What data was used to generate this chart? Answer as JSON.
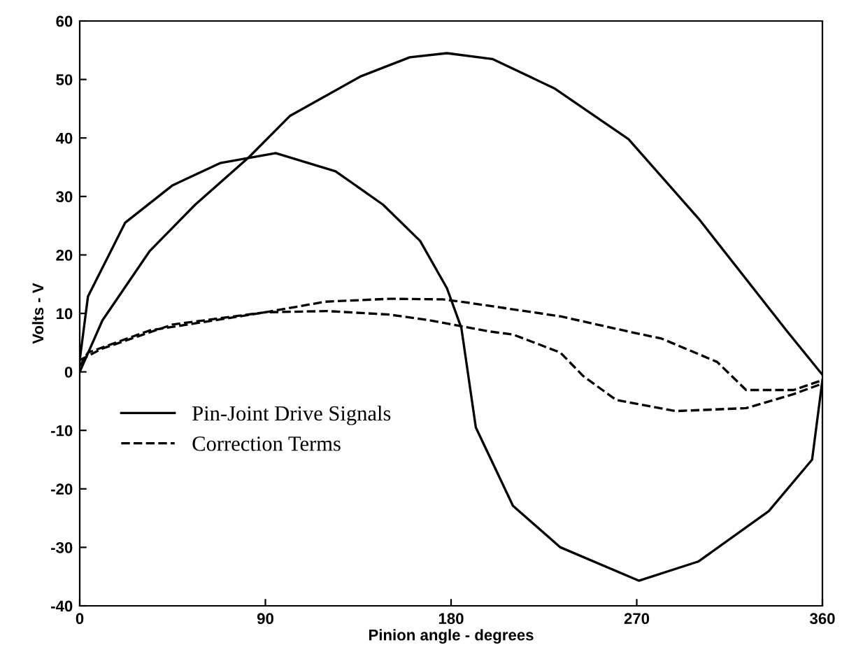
{
  "chart_data": {
    "type": "line",
    "xlabel": "Pinion angle - degrees",
    "ylabel": "Volts - V",
    "xlim": [
      0,
      360
    ],
    "xticks": [
      0,
      90,
      180,
      270,
      360
    ],
    "ylim": [
      -40,
      60
    ],
    "yticks": [
      -40,
      -30,
      -20,
      -10,
      0,
      10,
      20,
      30,
      40,
      50,
      60
    ],
    "grid": false,
    "legend": "left",
    "series": [
      {
        "name": "Pin-Joint Drive Signals",
        "color": "#000000",
        "line_style": "solid",
        "x": [
          0,
          11,
          34,
          56,
          82,
          102,
          136,
          160,
          178,
          200,
          230,
          266,
          300,
          343,
          360
        ],
        "values": [
          0,
          8.8,
          20.7,
          28.6,
          36.7,
          43.8,
          50.5,
          53.8,
          54.5,
          53.5,
          48.5,
          39.8,
          26.2,
          6.9,
          -0.5
        ]
      },
      {
        "color": "#000000",
        "line_style": "solid",
        "x": [
          0,
          4,
          22,
          45,
          68,
          95,
          124,
          147,
          165,
          178,
          185,
          192,
          210,
          233,
          271,
          300,
          334,
          355,
          360
        ],
        "values": [
          2,
          12.9,
          25.5,
          31.9,
          35.7,
          37.4,
          34.3,
          28.6,
          22.4,
          14.3,
          7.5,
          -9.5,
          -22.9,
          -30,
          -35.7,
          -32.4,
          -23.8,
          -15,
          -1.4
        ]
      },
      {
        "name": "Correction Terms",
        "color": "#000000",
        "line_style": "dashed",
        "x": [
          0,
          4,
          34,
          56,
          90,
          119,
          150,
          176,
          187,
          233,
          266,
          282,
          309,
          323,
          346,
          360
        ],
        "values": [
          1,
          3.3,
          7.1,
          8.3,
          10.2,
          12,
          12.5,
          12.4,
          11.9,
          9.5,
          6.9,
          5.7,
          1.7,
          -3.1,
          -3.1,
          -1.4
        ]
      },
      {
        "color": "#000000",
        "line_style": "dashed",
        "x": [
          0,
          11,
          45,
          90,
          120,
          150,
          170,
          199,
          210,
          233,
          244,
          260,
          289,
          323,
          346,
          360
        ],
        "values": [
          2,
          4,
          8.1,
          10.2,
          10.4,
          9.8,
          8.8,
          6.9,
          6.4,
          3.3,
          -0.7,
          -4.8,
          -6.7,
          -6.2,
          -3.8,
          -2
        ]
      }
    ]
  }
}
